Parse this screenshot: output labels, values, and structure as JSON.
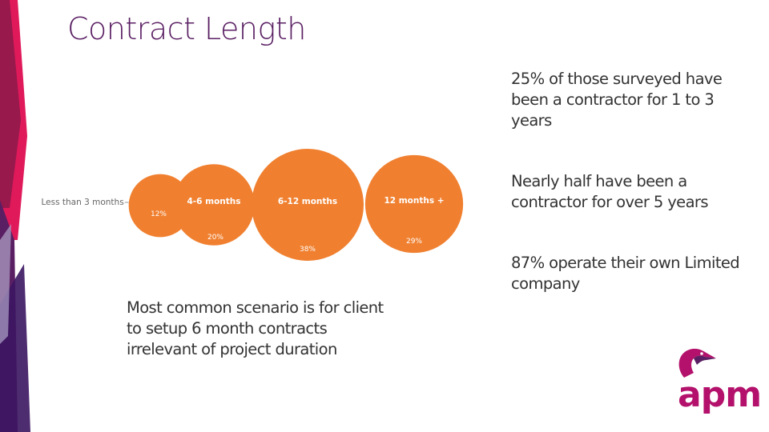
{
  "slide": {
    "title": "Contract Length",
    "stats": [
      "25% of those surveyed have been a contractor for 1 to 3 years",
      "Nearly half have been a contractor for over 5 years",
      "87% operate their own Limited company"
    ],
    "note": "Most common scenario is for client to setup 6 month contracts irrelevant of project duration"
  },
  "logo": {
    "text": "apm"
  },
  "colors": {
    "bubble": "#f08030",
    "title": "#5a1f63",
    "accent_magenta": "#c2185b",
    "accent_purple": "#5a1f63"
  },
  "chart_data": {
    "type": "bubble",
    "categories": [
      "Less than 3 months",
      "4-6 months",
      "6-12 months",
      "12 months +"
    ],
    "values": [
      12,
      20,
      38,
      29
    ],
    "value_labels": [
      "12%",
      "20%",
      "38%",
      "29%"
    ]
  }
}
